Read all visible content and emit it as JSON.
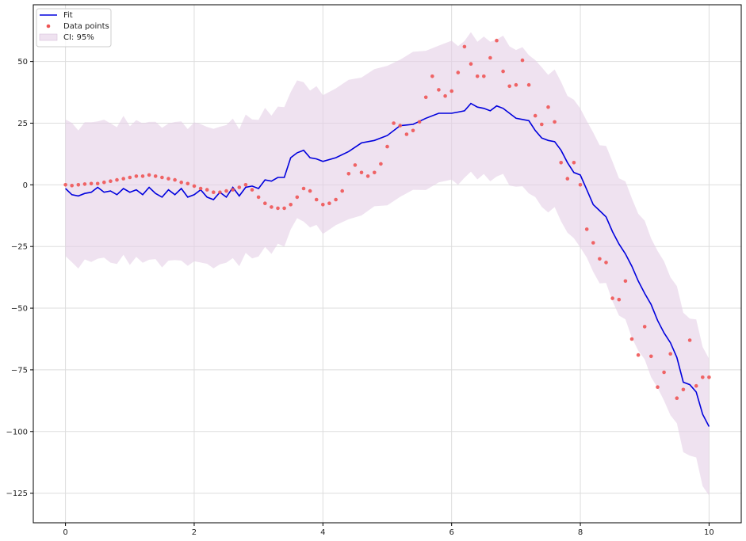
{
  "chart_data": {
    "type": "line",
    "xlim": [
      -0.5,
      10.5
    ],
    "ylim": [
      -137,
      73
    ],
    "xticks": [
      0,
      2,
      4,
      6,
      8,
      10
    ],
    "xtick_labels": [
      "0",
      "2",
      "4",
      "6",
      "8",
      "10"
    ],
    "yticks": [
      50,
      25,
      0,
      -25,
      -50,
      -75,
      -100,
      -125
    ],
    "ytick_labels": [
      "50",
      "25",
      "0",
      "−25",
      "−50",
      "−75",
      "−100",
      "−125"
    ],
    "grid": true,
    "legend": {
      "position": "top-left",
      "entries": [
        {
          "key": "fit",
          "label": "Fit"
        },
        {
          "key": "points",
          "label": "Data points"
        },
        {
          "key": "ci",
          "label": "CI: 95%"
        }
      ]
    },
    "colors": {
      "fit": "#0000dd",
      "points": "#ee5555",
      "ci": "#e4cfe6"
    },
    "ci_halfwidth": 28,
    "fit": {
      "x": [
        0,
        0.1,
        0.2,
        0.3,
        0.4,
        0.5,
        0.6,
        0.7,
        0.8,
        0.9,
        1.0,
        1.1,
        1.2,
        1.3,
        1.4,
        1.5,
        1.6,
        1.7,
        1.8,
        1.9,
        2.0,
        2.1,
        2.2,
        2.3,
        2.4,
        2.5,
        2.6,
        2.7,
        2.8,
        2.9,
        3.0,
        3.1,
        3.2,
        3.3,
        3.4,
        3.5,
        3.6,
        3.7,
        3.8,
        3.9,
        4.0,
        4.2,
        4.4,
        4.6,
        4.8,
        5.0,
        5.2,
        5.4,
        5.6,
        5.8,
        6.0,
        6.1,
        6.2,
        6.3,
        6.4,
        6.5,
        6.6,
        6.7,
        6.8,
        6.9,
        7.0,
        7.1,
        7.2,
        7.3,
        7.4,
        7.5,
        7.6,
        7.7,
        7.8,
        7.9,
        8.0,
        8.1,
        8.2,
        8.3,
        8.4,
        8.5,
        8.6,
        8.7,
        8.8,
        8.9,
        9.0,
        9.1,
        9.2,
        9.3,
        9.4,
        9.5,
        9.6,
        9.7,
        9.8,
        9.9,
        10.0
      ],
      "y": [
        -1.5,
        -4,
        -4.5,
        -3.5,
        -3,
        -1,
        -3,
        -2.5,
        -4,
        -1.5,
        -3,
        -2,
        -4,
        -1,
        -3.5,
        -5,
        -2,
        -4,
        -1.5,
        -5,
        -4,
        -2,
        -5,
        -6,
        -3,
        -5,
        -1,
        -4.5,
        -1,
        -0.5,
        -1.5,
        2,
        1.5,
        3,
        3,
        11,
        13,
        14,
        11,
        10.5,
        9.5,
        11,
        13.5,
        17,
        18,
        20,
        24,
        24.5,
        27,
        29,
        29,
        29.5,
        30,
        33,
        31.5,
        31,
        30,
        32,
        31,
        29,
        27,
        26.5,
        26,
        22,
        19,
        18,
        17.5,
        14,
        9,
        5,
        4,
        -2,
        -8,
        -10.5,
        -13,
        -19,
        -24,
        -28,
        -33,
        -39,
        -44,
        -48.5,
        -55,
        -60,
        -64,
        -70,
        -80,
        -81,
        -84,
        -93,
        -98
      ]
    },
    "points": {
      "x": [
        0,
        0.1,
        0.2,
        0.3,
        0.4,
        0.5,
        0.6,
        0.7,
        0.8,
        0.9,
        1.0,
        1.1,
        1.2,
        1.3,
        1.4,
        1.5,
        1.6,
        1.7,
        1.8,
        1.9,
        2.0,
        2.1,
        2.2,
        2.3,
        2.4,
        2.5,
        2.6,
        2.7,
        2.8,
        2.9,
        3.0,
        3.1,
        3.2,
        3.3,
        3.4,
        3.5,
        3.6,
        3.7,
        3.8,
        3.9,
        4.0,
        4.1,
        4.2,
        4.3,
        4.4,
        4.5,
        4.6,
        4.7,
        4.8,
        4.9,
        5.0,
        5.1,
        5.2,
        5.3,
        5.4,
        5.5,
        5.6,
        5.7,
        5.8,
        5.9,
        6.0,
        6.1,
        6.2,
        6.3,
        6.4,
        6.5,
        6.6,
        6.7,
        6.8,
        6.9,
        7.0,
        7.1,
        7.2,
        7.3,
        7.4,
        7.5,
        7.6,
        7.7,
        7.8,
        7.9,
        8.0,
        8.1,
        8.2,
        8.3,
        8.4,
        8.5,
        8.6,
        8.7,
        8.8,
        8.9,
        9.0,
        9.1,
        9.2,
        9.3,
        9.4,
        9.5,
        9.6,
        9.7,
        9.8,
        9.9,
        10.0
      ],
      "y": [
        0,
        -0.3,
        0,
        0.3,
        0.5,
        0.5,
        1,
        1.5,
        2,
        2.5,
        3,
        3.5,
        3.5,
        4,
        3.5,
        3,
        2.5,
        2,
        1,
        0.5,
        -0.5,
        -1.5,
        -2,
        -3,
        -3,
        -2.5,
        -2,
        -1,
        0,
        -2,
        -5,
        -7.5,
        -9,
        -9.5,
        -9.5,
        -8,
        -5,
        -1.5,
        -2.5,
        -6,
        -8,
        -7.5,
        -6,
        -2.5,
        4.5,
        8,
        5,
        3.5,
        5,
        8.5,
        15.5,
        25,
        24,
        20.5,
        22,
        25.5,
        35.5,
        44,
        38.5,
        36,
        38,
        45.5,
        56,
        49,
        44,
        44,
        51.5,
        58.5,
        46,
        40,
        40.5,
        50.5,
        40.5,
        28,
        24.5,
        31.5,
        25.5,
        9,
        2.5,
        9,
        0,
        -18,
        -23.5,
        -30,
        -31.5,
        -46,
        -46.5,
        -39,
        -62.5,
        -69,
        -57.5,
        -69.5,
        -82,
        -76,
        -68.5,
        -86.5,
        -83,
        -63,
        -81.5,
        -78,
        -78
      ]
    }
  }
}
